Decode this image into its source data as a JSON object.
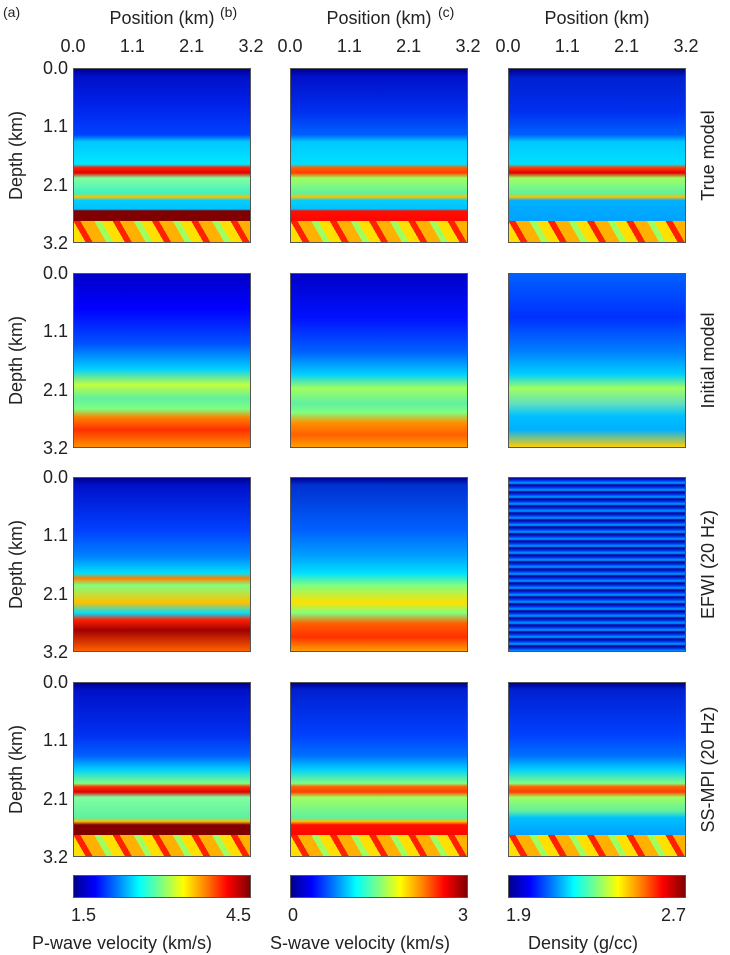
{
  "panel_labels": [
    "(a)",
    "(b)",
    "(c)"
  ],
  "x_axis": {
    "title": "Position (km)",
    "ticks": [
      "0.0",
      "1.1",
      "2.1",
      "3.2"
    ]
  },
  "y_axis": {
    "title": "Depth (km)",
    "ticks": [
      "0.0",
      "1.1",
      "2.1",
      "3.2"
    ]
  },
  "rows": [
    "True model",
    "Initial model",
    "EFWI (20 Hz)",
    "SS-MPI (20 Hz)"
  ],
  "colorbars": [
    {
      "label": "P-wave velocity (km/s)",
      "min": "1.5",
      "max": "4.5"
    },
    {
      "label": "S-wave velocity (km/s)",
      "min": "0",
      "max": "3"
    },
    {
      "label": "Density (g/cc)",
      "min": "1.9",
      "max": "2.7"
    }
  ],
  "chart_data": {
    "type": "heatmap",
    "colormap": "jet",
    "columns": [
      "P-wave velocity (km/s)",
      "S-wave velocity (km/s)",
      "Density (g/cc)"
    ],
    "rows": [
      "True model",
      "Initial model",
      "EFWI (20 Hz)",
      "SS-MPI (20 Hz)"
    ],
    "xlabel": "Position (km)",
    "ylabel": "Depth (km)",
    "xlim": [
      0.0,
      3.2
    ],
    "ylim": [
      3.2,
      0.0
    ],
    "xticks": [
      "0.0",
      "1.1",
      "2.1",
      "3.2"
    ],
    "yticks": [
      "0.0",
      "1.1",
      "2.1",
      "3.2"
    ],
    "clim": [
      [
        1.5,
        4.5
      ],
      [
        0,
        3
      ],
      [
        1.9,
        2.7
      ]
    ]
  }
}
